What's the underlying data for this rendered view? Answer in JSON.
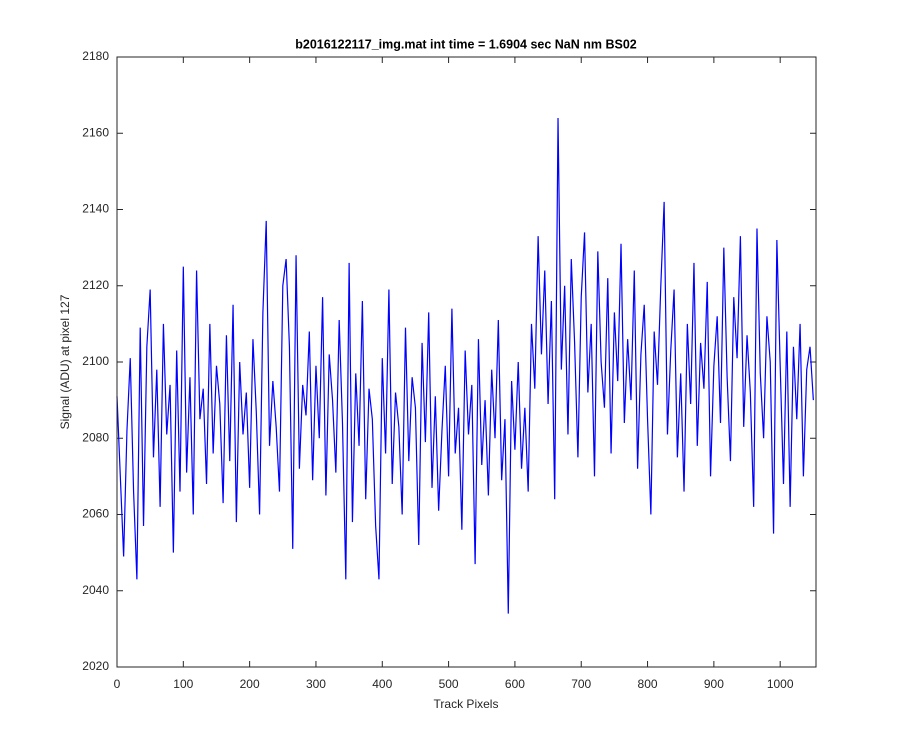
{
  "chart_data": {
    "type": "line",
    "title": "b2016122117_img.mat int time = 1.6904 sec  NaN nm BS02",
    "x_label": "Track Pixels",
    "y_label": "Signal (ADU) at pixel 127",
    "xlim": [
      0,
      1054
    ],
    "ylim": [
      2020,
      2180
    ],
    "xticks": [
      0,
      100,
      200,
      300,
      400,
      500,
      600,
      700,
      800,
      900,
      1000
    ],
    "yticks": [
      2020,
      2040,
      2060,
      2080,
      2100,
      2120,
      2140,
      2160,
      2180
    ],
    "grid": false,
    "x": [
      0,
      5,
      10,
      15,
      20,
      25,
      30,
      35,
      40,
      45,
      50,
      55,
      60,
      65,
      70,
      75,
      80,
      85,
      90,
      95,
      100,
      105,
      110,
      115,
      120,
      125,
      130,
      135,
      140,
      145,
      150,
      155,
      160,
      165,
      170,
      175,
      180,
      185,
      190,
      195,
      200,
      205,
      210,
      215,
      220,
      225,
      230,
      235,
      240,
      245,
      250,
      255,
      260,
      265,
      270,
      275,
      280,
      285,
      290,
      295,
      300,
      305,
      310,
      315,
      320,
      325,
      330,
      335,
      340,
      345,
      350,
      355,
      360,
      365,
      370,
      375,
      380,
      385,
      390,
      395,
      400,
      405,
      410,
      415,
      420,
      425,
      430,
      435,
      440,
      445,
      450,
      455,
      460,
      465,
      470,
      475,
      480,
      485,
      490,
      495,
      500,
      505,
      510,
      515,
      520,
      525,
      530,
      535,
      540,
      545,
      550,
      555,
      560,
      565,
      570,
      575,
      580,
      585,
      590,
      595,
      600,
      605,
      610,
      615,
      620,
      625,
      630,
      635,
      640,
      645,
      650,
      655,
      660,
      665,
      670,
      675,
      680,
      685,
      690,
      695,
      700,
      705,
      710,
      715,
      720,
      725,
      730,
      735,
      740,
      745,
      750,
      755,
      760,
      765,
      770,
      775,
      780,
      785,
      790,
      795,
      800,
      805,
      810,
      815,
      820,
      825,
      830,
      835,
      840,
      845,
      850,
      855,
      860,
      865,
      870,
      875,
      880,
      885,
      890,
      895,
      900,
      905,
      910,
      915,
      920,
      925,
      930,
      935,
      940,
      945,
      950,
      955,
      960,
      965,
      970,
      975,
      980,
      985,
      990,
      995,
      1000,
      1005,
      1010,
      1015,
      1020,
      1025,
      1030,
      1035,
      1040,
      1045,
      1050
    ],
    "series": [
      {
        "color": "#0000ff",
        "values": [
          2091,
          2070,
          2049,
          2082,
          2101,
          2066,
          2043,
          2109,
          2057,
          2104,
          2119,
          2075,
          2098,
          2062,
          2110,
          2081,
          2094,
          2050,
          2103,
          2066,
          2125,
          2071,
          2096,
          2060,
          2124,
          2085,
          2093,
          2068,
          2110,
          2076,
          2099,
          2089,
          2063,
          2107,
          2074,
          2115,
          2058,
          2100,
          2081,
          2092,
          2067,
          2106,
          2087,
          2060,
          2113,
          2137,
          2078,
          2095,
          2083,
          2066,
          2120,
          2127,
          2104,
          2051,
          2128,
          2072,
          2094,
          2086,
          2108,
          2069,
          2099,
          2080,
          2117,
          2065,
          2102,
          2090,
          2071,
          2111,
          2084,
          2043,
          2126,
          2058,
          2097,
          2078,
          2116,
          2064,
          2093,
          2085,
          2057,
          2043,
          2101,
          2076,
          2119,
          2068,
          2092,
          2083,
          2060,
          2109,
          2074,
          2096,
          2088,
          2052,
          2105,
          2079,
          2113,
          2067,
          2091,
          2061,
          2082,
          2099,
          2070,
          2114,
          2076,
          2088,
          2056,
          2103,
          2081,
          2094,
          2047,
          2106,
          2073,
          2090,
          2065,
          2098,
          2080,
          2111,
          2069,
          2085,
          2034,
          2095,
          2077,
          2100,
          2072,
          2088,
          2066,
          2110,
          2093,
          2133,
          2102,
          2124,
          2089,
          2116,
          2064,
          2164,
          2098,
          2120,
          2081,
          2127,
          2105,
          2075,
          2117,
          2134,
          2092,
          2110,
          2070,
          2129,
          2100,
          2088,
          2122,
          2076,
          2113,
          2095,
          2131,
          2084,
          2106,
          2090,
          2124,
          2072,
          2102,
          2115,
          2085,
          2060,
          2108,
          2094,
          2120,
          2142,
          2081,
          2103,
          2119,
          2075,
          2097,
          2066,
          2110,
          2089,
          2126,
          2078,
          2105,
          2093,
          2121,
          2070,
          2099,
          2112,
          2084,
          2130,
          2096,
          2074,
          2117,
          2101,
          2133,
          2083,
          2107,
          2092,
          2062,
          2135,
          2097,
          2080,
          2112,
          2100,
          2055,
          2132,
          2099,
          2068,
          2108,
          2062,
          2104,
          2085,
          2110,
          2070,
          2098,
          2104,
          2090
        ]
      }
    ]
  }
}
